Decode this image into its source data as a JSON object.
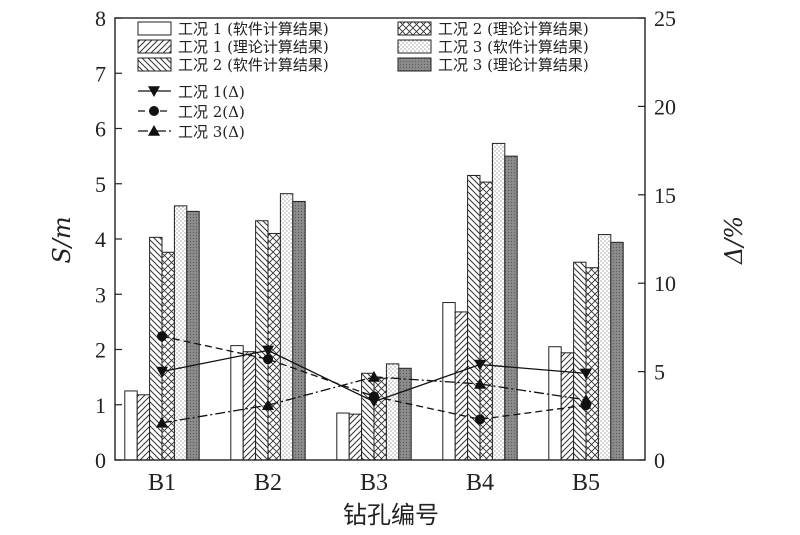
{
  "chart_data": {
    "type": "bar",
    "categories": [
      "B1",
      "B2",
      "B3",
      "B4",
      "B5"
    ],
    "xlabel": "钻孔编号",
    "ylabel": "S/m",
    "y2label": "Δ/%",
    "ylim": [
      0,
      8
    ],
    "y2lim": [
      0,
      25
    ],
    "yticks": [
      "0",
      "1",
      "2",
      "3",
      "4",
      "5",
      "6",
      "7",
      "8"
    ],
    "y2ticks": [
      "0",
      "5",
      "10",
      "15",
      "20",
      "25"
    ],
    "grid": false,
    "legend_position": "top-left",
    "bar_series": [
      {
        "name": "工况 1 (软件计算结果)",
        "pattern": "empty",
        "values": [
          1.25,
          2.07,
          0.85,
          2.85,
          2.05
        ]
      },
      {
        "name": "工况 1 (理论计算结果)",
        "pattern": "diag-right",
        "values": [
          1.18,
          1.96,
          0.83,
          2.68,
          1.94
        ]
      },
      {
        "name": "工况 2 (软件计算结果)",
        "pattern": "diag-left",
        "values": [
          4.03,
          4.33,
          1.57,
          5.15,
          3.58
        ]
      },
      {
        "name": "工况 2 (理论计算结果)",
        "pattern": "cross",
        "values": [
          3.76,
          4.1,
          1.48,
          5.03,
          3.48
        ]
      },
      {
        "name": "工况 3 (软件计算结果)",
        "pattern": "dots",
        "values": [
          4.6,
          4.82,
          1.74,
          5.73,
          4.08
        ]
      },
      {
        "name": "工况 3 (理论计算结果)",
        "pattern": "dark",
        "values": [
          4.5,
          4.68,
          1.66,
          5.5,
          3.94
        ]
      }
    ],
    "line_series": [
      {
        "name": "工况 1(Δ)",
        "axis": "right",
        "marker": "triangle-down",
        "dash": "solid",
        "values": [
          5.0,
          6.2,
          3.3,
          5.4,
          4.9
        ]
      },
      {
        "name": "工况 2(Δ)",
        "axis": "right",
        "marker": "circle",
        "dash": "dashed",
        "values": [
          7.0,
          5.7,
          3.6,
          2.3,
          3.1
        ]
      },
      {
        "name": "工况 3(Δ)",
        "axis": "right",
        "marker": "triangle-up",
        "dash": "dashdot",
        "values": [
          2.1,
          3.1,
          4.7,
          4.3,
          3.4
        ]
      }
    ]
  },
  "colors": {
    "stroke": "#222222",
    "hatch": "#333333",
    "dark_fill": "#8c8c8c",
    "line": "#111111"
  }
}
